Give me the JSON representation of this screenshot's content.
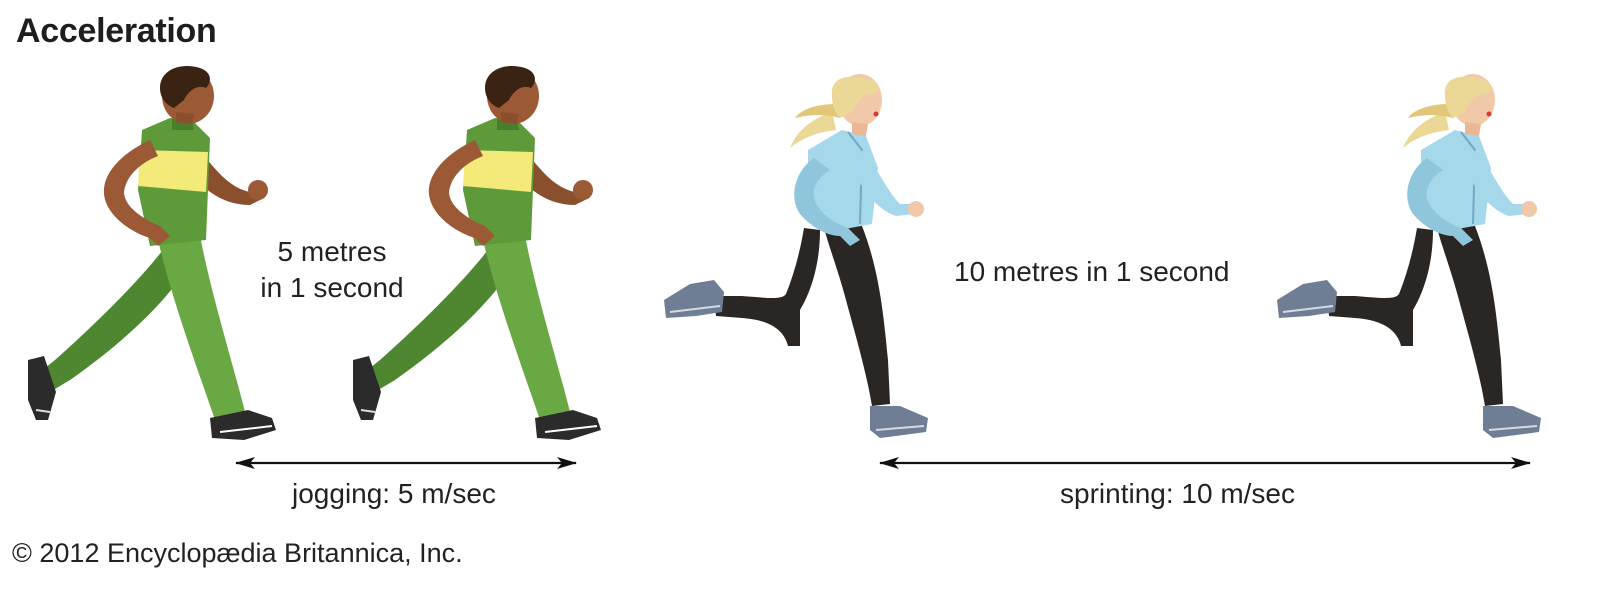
{
  "title": "Acceleration",
  "jogger": {
    "distance_line1": "5 metres",
    "distance_line2": "in 1 second",
    "speed_label": "jogging: 5 m/sec"
  },
  "sprinter": {
    "distance_label": "10 metres in 1 second",
    "speed_label": "sprinting: 10 m/sec"
  },
  "copyright": "© 2012 Encyclopædia Britannica, Inc.",
  "colors": {
    "jogger_suit": "#5e9a3a",
    "jogger_stripe": "#f3ea7a",
    "jogger_skin": "#9b5a35",
    "sprinter_jacket": "#a6d8ec",
    "sprinter_pants": "#2a2624",
    "sprinter_hair": "#ecd896",
    "arrow": "#111111"
  }
}
